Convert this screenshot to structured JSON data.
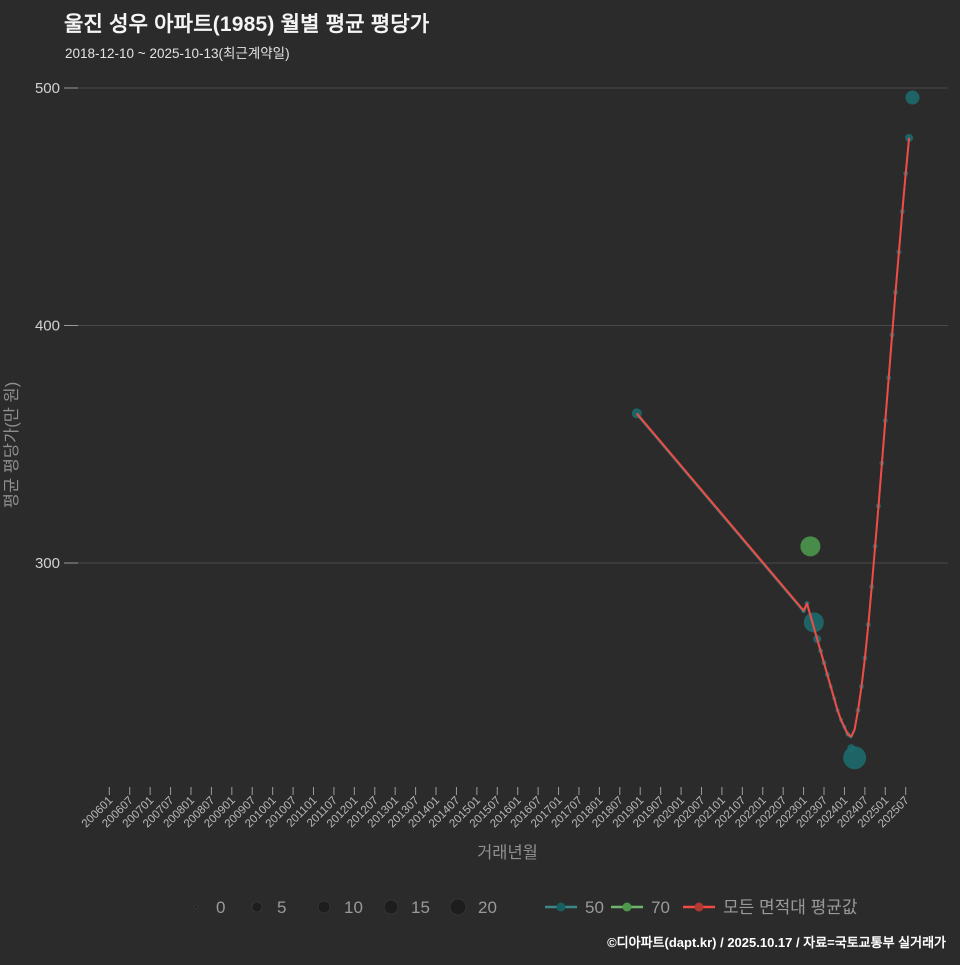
{
  "header": {
    "title": "울진 성우 아파트(1985) 월별 평균 평당가",
    "subtitle": "2018-12-10 ~ 2025-10-13(최근계약일)"
  },
  "footer": {
    "attribution": "©디아파트(dapt.kr) / 2025.10.17 / 자료=국토교통부 실거래가"
  },
  "colors": {
    "background": "#2b2b2b",
    "grid": "#4a4a4a",
    "tick_stub": "#9a9a9a",
    "y_tick_label": "#d2d2d2",
    "x_tick_label": "#b8b8b8",
    "axis_title": "#8f8f8f",
    "legend_label": "#9a9a9a",
    "legend_size_circle": "#1d1d1d",
    "teal_line": "#3c8787",
    "teal_bubble": "#1d6b6e",
    "green_line": "#6db56d",
    "green_bubble": "#4d984d",
    "red_line": "#f04b44",
    "red_dot": "#b23832"
  },
  "chart_data": {
    "type": "bubble-line",
    "title": "울진 성우 아파트(1985) 월별 평균 평당가",
    "subtitle": "2018-12-10 ~ 2025-10-13(최근계약일)",
    "xlabel": "거래년월",
    "ylabel": "평균 평당가(만 원)",
    "yticks": [
      300,
      400,
      500
    ],
    "ylim": [
      205,
      505
    ],
    "grid": true,
    "legend_position": "bottom",
    "xticks": [
      "200601",
      "200607",
      "200701",
      "200707",
      "200801",
      "200807",
      "200901",
      "200907",
      "201001",
      "201007",
      "201101",
      "201107",
      "201201",
      "201207",
      "201301",
      "201307",
      "201401",
      "201407",
      "201501",
      "201507",
      "201601",
      "201607",
      "201701",
      "201707",
      "201801",
      "201807",
      "201901",
      "201907",
      "202001",
      "202007",
      "202101",
      "202107",
      "202201",
      "202207",
      "202301",
      "202307",
      "202401",
      "202407",
      "202501",
      "202507"
    ],
    "series": [
      {
        "name": "모든 면적대 평균값",
        "kind": "line",
        "color_key": "red_line",
        "points": [
          [
            "201812",
            363
          ],
          [
            "202301",
            280
          ],
          [
            "202302",
            283
          ],
          [
            "202303",
            278
          ],
          [
            "202304",
            273
          ],
          [
            "202305",
            268
          ],
          [
            "202306",
            263
          ],
          [
            "202307",
            258
          ],
          [
            "202308",
            253
          ],
          [
            "202309",
            248
          ],
          [
            "202310",
            243
          ],
          [
            "202311",
            238
          ],
          [
            "202312",
            234
          ],
          [
            "202401",
            231
          ],
          [
            "202402",
            228
          ],
          [
            "202403",
            227
          ],
          [
            "202404",
            230
          ],
          [
            "202405",
            238
          ],
          [
            "202406",
            248
          ],
          [
            "202407",
            260
          ],
          [
            "202408",
            274
          ],
          [
            "202409",
            290
          ],
          [
            "202410",
            307
          ],
          [
            "202411",
            324
          ],
          [
            "202412",
            342
          ],
          [
            "202501",
            360
          ],
          [
            "202502",
            378
          ],
          [
            "202503",
            396
          ],
          [
            "202504",
            414
          ],
          [
            "202505",
            431
          ],
          [
            "202506",
            448
          ],
          [
            "202507",
            464
          ],
          [
            "202508",
            479
          ]
        ]
      },
      {
        "name": "50",
        "kind": "bubble",
        "color_key": "teal_bubble",
        "line_color_key": "teal_line",
        "bubbles": [
          [
            "201812",
            363,
            5
          ],
          [
            "202301",
            280,
            2.5
          ],
          [
            "202302",
            283,
            2.5
          ],
          [
            "202304",
            275,
            10
          ],
          [
            "202305",
            268,
            4
          ],
          [
            "202306",
            263,
            2.5
          ],
          [
            "202307",
            258,
            2.5
          ],
          [
            "202308",
            253,
            2.5
          ],
          [
            "202309",
            248,
            2
          ],
          [
            "202310",
            243,
            2
          ],
          [
            "202311",
            238,
            2
          ],
          [
            "202312",
            234,
            2
          ],
          [
            "202401",
            231,
            2
          ],
          [
            "202402",
            228,
            2.5
          ],
          [
            "202403",
            222,
            4
          ],
          [
            "202404",
            218,
            11.5
          ],
          [
            "202405",
            238,
            2.5
          ],
          [
            "202406",
            248,
            2.5
          ],
          [
            "202407",
            260,
            2.5
          ],
          [
            "202408",
            274,
            2.5
          ],
          [
            "202409",
            290,
            2.5
          ],
          [
            "202410",
            307,
            2.5
          ],
          [
            "202411",
            324,
            2.5
          ],
          [
            "202412",
            342,
            2.5
          ],
          [
            "202501",
            360,
            2.5
          ],
          [
            "202502",
            378,
            2.5
          ],
          [
            "202503",
            396,
            2.5
          ],
          [
            "202504",
            414,
            2.5
          ],
          [
            "202505",
            431,
            2.5
          ],
          [
            "202506",
            448,
            2.5
          ],
          [
            "202507",
            464,
            2.5
          ],
          [
            "202508",
            479,
            4
          ],
          [
            "202509",
            496,
            7
          ]
        ]
      },
      {
        "name": "70",
        "kind": "bubble",
        "color_key": "green_bubble",
        "line_color_key": "green_line",
        "bubbles": [
          [
            "202303",
            307,
            10
          ]
        ]
      }
    ],
    "size_legend": {
      "values": [
        "0",
        "5",
        "10",
        "15",
        "20"
      ],
      "radii": [
        1.5,
        5,
        6,
        7,
        8
      ]
    }
  }
}
